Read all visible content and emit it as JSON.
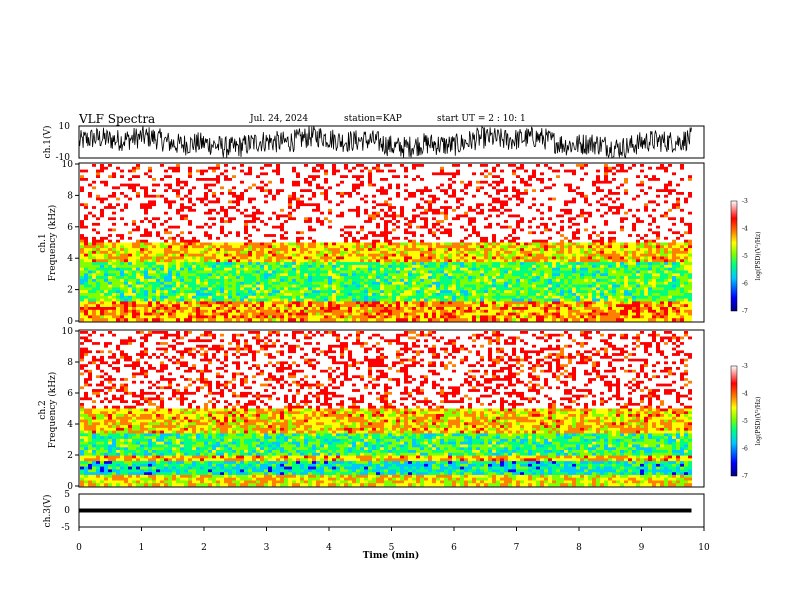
{
  "header": {
    "title": "VLF Spectra",
    "date": "Jul. 24, 2024",
    "station": "station=KAP",
    "start": "start UT =  2 : 10: 1"
  },
  "colors": {
    "spectrogram_ramp": [
      "#000080",
      "#0000ff",
      "#00c8ff",
      "#00ff80",
      "#80ff00",
      "#ffff00",
      "#ff8000",
      "#ff0000",
      "#ffffff"
    ],
    "trace": "#000000"
  },
  "chart_data": [
    {
      "type": "line",
      "name": "ch1-waveform",
      "ylabel": "ch.1(V)",
      "ylim": [
        -10,
        10
      ],
      "y_ticks": [
        "10",
        "-10"
      ],
      "xlim": [
        0,
        10
      ],
      "description_series": "dense noisy waveform spanning most of range"
    },
    {
      "type": "heatmap",
      "name": "ch1-spectrogram",
      "ylabel_lines": [
        "ch.1",
        "Frequency (kHz)"
      ],
      "ylim": [
        0,
        10
      ],
      "y_ticks": [
        "0",
        "2",
        "4",
        "6",
        "8",
        "10"
      ],
      "xlim": [
        0,
        10
      ],
      "data_end_min": 9.8,
      "colorbar": {
        "label": "log(PSD)(V²/Hz)",
        "range": [
          -7,
          -3
        ],
        "ticks": [
          "-3",
          "-4",
          "-5",
          "-6",
          "-7"
        ]
      },
      "bands_khz": [
        {
          "from": 0,
          "to": 1.2,
          "level": -4.2
        },
        {
          "from": 1.2,
          "to": 3.8,
          "level": -5.2
        },
        {
          "from": 3.8,
          "to": 5.0,
          "level": -4.4
        },
        {
          "from": 5.0,
          "to": 10,
          "level": -3.5
        }
      ]
    },
    {
      "type": "heatmap",
      "name": "ch2-spectrogram",
      "ylabel_lines": [
        "ch.2",
        "Frequency (kHz)"
      ],
      "ylim": [
        0,
        10
      ],
      "y_ticks": [
        "0",
        "2",
        "4",
        "6",
        "8",
        "10"
      ],
      "xlim": [
        0,
        10
      ],
      "data_end_min": 9.8,
      "colorbar": {
        "label": "log(PSD)(V²/Hz)",
        "range": [
          -7,
          -3
        ],
        "ticks": [
          "-3",
          "-4",
          "-5",
          "-6",
          "-7"
        ]
      },
      "bands_khz": [
        {
          "from": 0,
          "to": 0.8,
          "level": -4.5
        },
        {
          "from": 0.8,
          "to": 1.6,
          "level": -5.6
        },
        {
          "from": 1.6,
          "to": 2.0,
          "level": -4.3
        },
        {
          "from": 2.0,
          "to": 3.4,
          "level": -5.3
        },
        {
          "from": 3.4,
          "to": 5.0,
          "level": -4.4
        },
        {
          "from": 5.0,
          "to": 10,
          "level": -3.6
        }
      ]
    },
    {
      "type": "line",
      "name": "ch3-waveform",
      "ylabel": "ch.3(V)",
      "ylim": [
        -5,
        5
      ],
      "y_ticks": [
        "5",
        "0",
        "-5"
      ],
      "xlim": [
        0,
        10
      ],
      "xlabel": "Time (min)",
      "x_ticks": [
        "0",
        "1",
        "2",
        "3",
        "4",
        "5",
        "6",
        "7",
        "8",
        "9",
        "10"
      ],
      "band": {
        "from": -0.6,
        "to": 0.6
      }
    }
  ]
}
